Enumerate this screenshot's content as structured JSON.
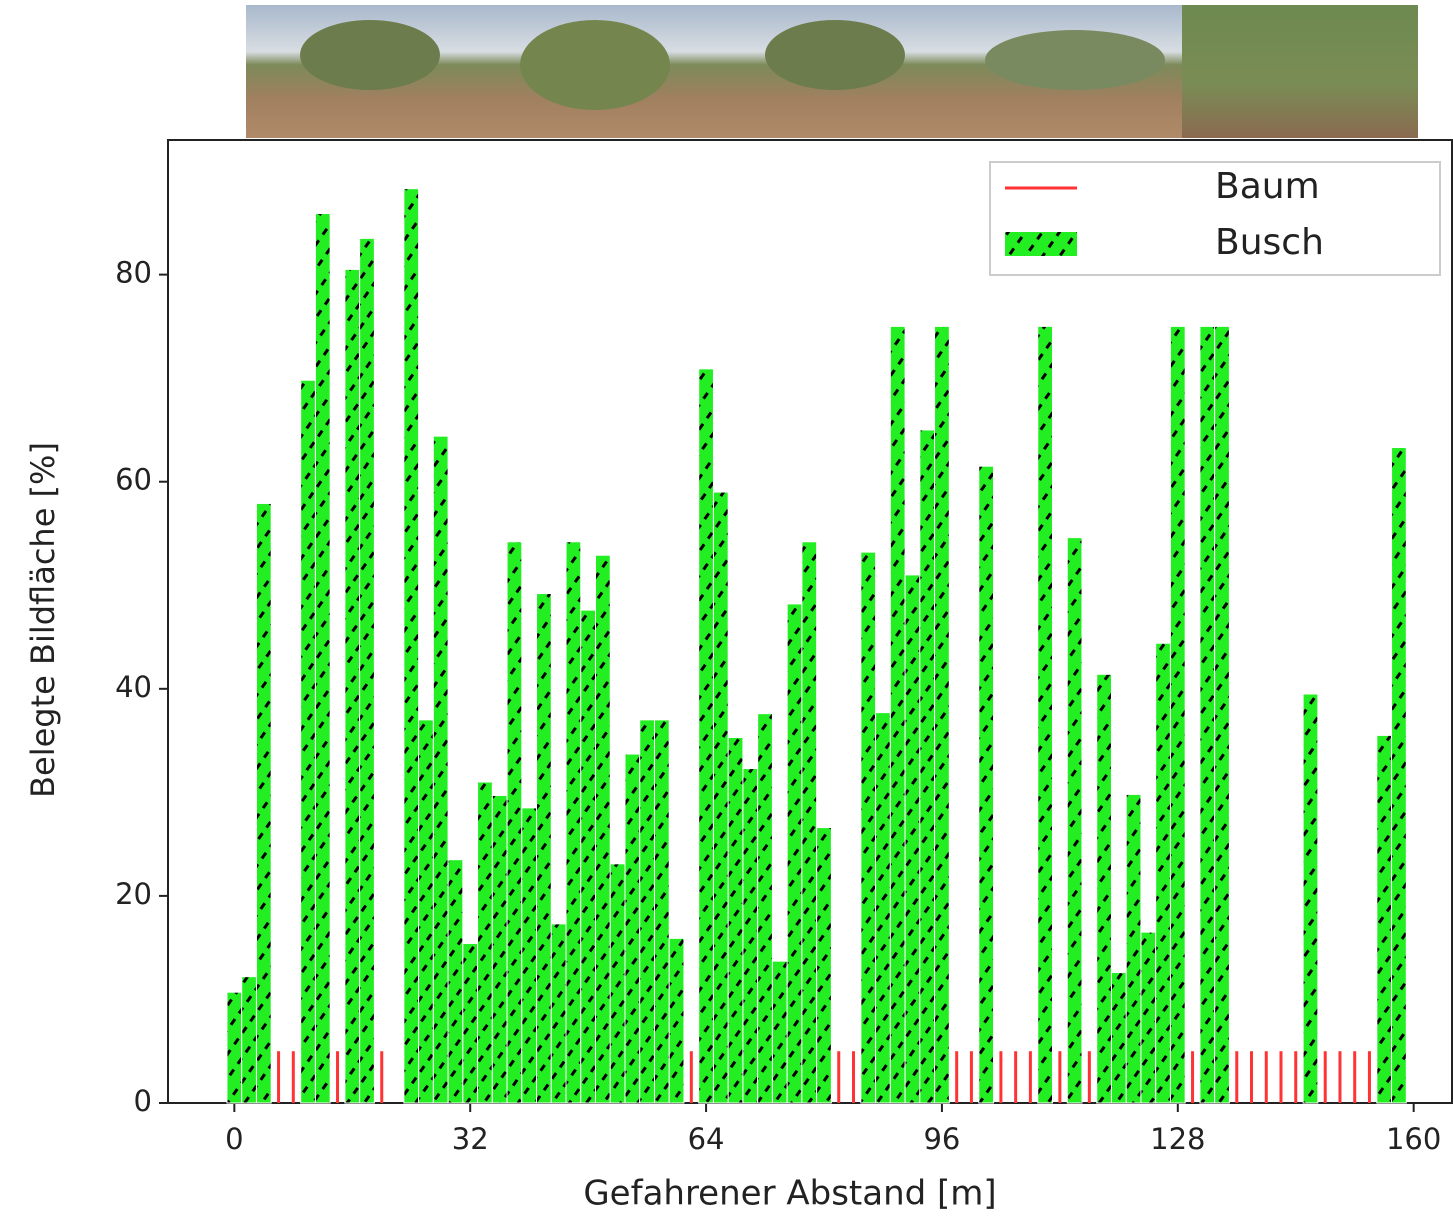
{
  "chart_data": {
    "type": "bar",
    "xlabel": "Gefahrener Abstand [m]",
    "ylabel": "Belegte Bildfläche [%]",
    "xlim": [
      -9,
      165.2
    ],
    "ylim": [
      0,
      93
    ],
    "xticks": [
      0,
      32,
      64,
      96,
      128,
      160
    ],
    "yticks": [
      0,
      20,
      40,
      60,
      80
    ],
    "grid": false,
    "legend": "upper right",
    "series": [
      {
        "name": "Baum",
        "color": "#ff3333",
        "x": [
          0,
          2,
          4,
          6,
          8,
          14,
          20,
          26,
          28,
          30,
          32,
          34,
          36,
          38,
          40,
          44,
          48,
          52,
          60,
          62,
          64,
          66,
          70,
          72,
          80,
          82,
          84,
          94,
          98,
          100,
          104,
          106,
          108,
          112,
          116,
          118,
          120,
          130,
          136,
          138,
          140,
          142,
          144,
          148,
          150,
          152,
          154,
          156
        ],
        "values": [
          5,
          5,
          5,
          5,
          5,
          5,
          5,
          5,
          5,
          5,
          5,
          5,
          5,
          5,
          5,
          5,
          5,
          5,
          5,
          5,
          5,
          5,
          5,
          5,
          5,
          5,
          5,
          5,
          5,
          5,
          5,
          5,
          5,
          5,
          5,
          5,
          5,
          5,
          5,
          5,
          5,
          5,
          5,
          5,
          5,
          5,
          5,
          5
        ]
      },
      {
        "name": "Busch",
        "color": "#22ee22",
        "x": [
          0,
          2,
          4,
          10,
          12,
          16,
          18,
          24,
          26,
          28,
          30,
          32,
          34,
          36,
          38,
          40,
          42,
          44,
          46,
          48,
          50,
          52,
          54,
          56,
          58,
          60,
          64,
          66,
          68,
          70,
          72,
          74,
          76,
          78,
          80,
          86,
          88,
          90,
          92,
          94,
          96,
          102,
          110,
          114,
          118,
          120,
          122,
          124,
          126,
          128,
          132,
          134,
          146,
          156,
          158
        ],
        "values": [
          10.7,
          12.2,
          57.9,
          69.8,
          85.9,
          80.5,
          83.5,
          88.3,
          37,
          64.4,
          23.5,
          15.4,
          31,
          29.7,
          54.2,
          28.5,
          49.2,
          17.3,
          54.2,
          47.6,
          52.9,
          23.1,
          33.7,
          37,
          37,
          15.9,
          70.9,
          59,
          35.3,
          32.3,
          37.6,
          13.7,
          48.2,
          54.2,
          26.6,
          53.2,
          37.7,
          75,
          51,
          65,
          75,
          61.5,
          75,
          54.6,
          41.4,
          12.6,
          29.8,
          16.5,
          44.4,
          75,
          75,
          75,
          39.5,
          35.5,
          63.3
        ]
      }
    ]
  }
}
